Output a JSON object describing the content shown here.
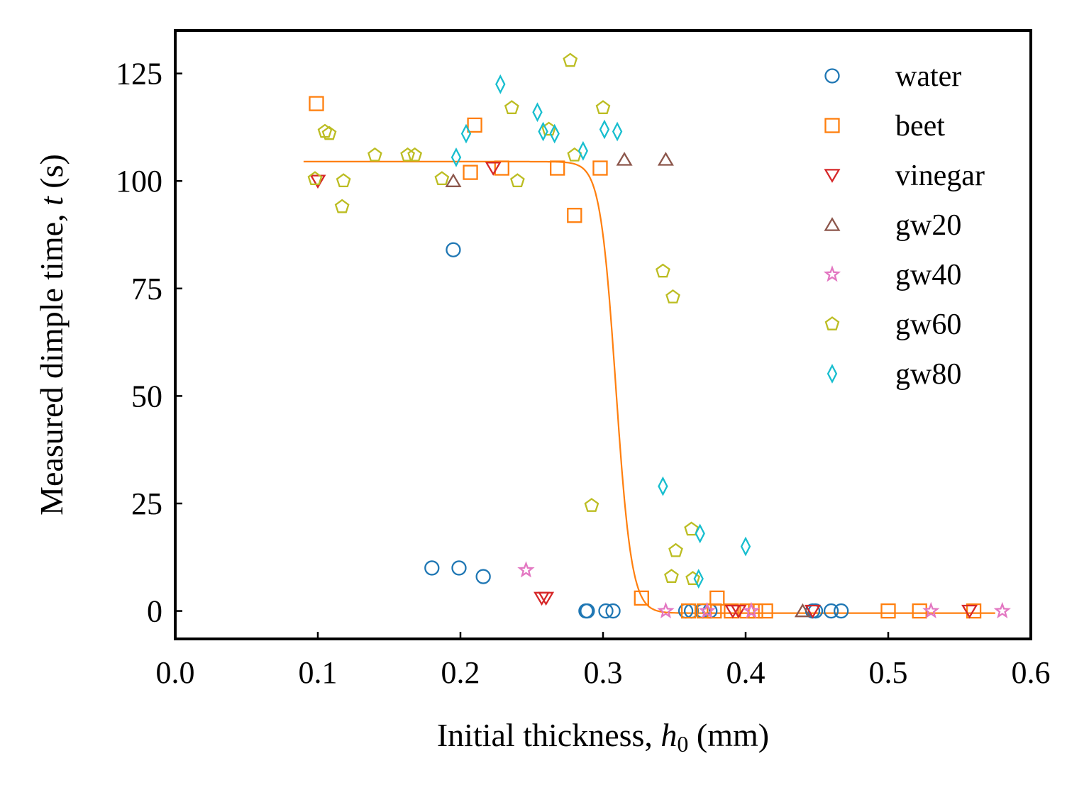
{
  "chart_data": {
    "type": "scatter",
    "xlabel_prefix": "Initial thickness, ",
    "xlabel_var": "h",
    "xlabel_sub": "0",
    "xlabel_suffix": " (mm)",
    "ylabel_prefix": "Measured dimple time, ",
    "ylabel_var": "t",
    "ylabel_suffix": " (s)",
    "xlim": [
      0.0,
      0.6
    ],
    "ylim": [
      -6.5,
      135
    ],
    "xticks": [
      "0.0",
      "0.1",
      "0.2",
      "0.3",
      "0.4",
      "0.5",
      "0.6"
    ],
    "yticks": [
      "0",
      "25",
      "50",
      "75",
      "100",
      "125"
    ],
    "grid": false,
    "legend_position": "top-right",
    "series": [
      {
        "name": "water",
        "marker": "circle",
        "color": "#1f77b4",
        "x": [
          0.195,
          0.18,
          0.199,
          0.216,
          0.288,
          0.289,
          0.302,
          0.307,
          0.358,
          0.362,
          0.37,
          0.375,
          0.447,
          0.449,
          0.46,
          0.467
        ],
        "y": [
          84,
          10,
          10,
          8,
          0,
          0,
          0,
          0,
          0,
          0,
          0,
          0,
          0,
          0,
          0,
          0
        ]
      },
      {
        "name": "beet",
        "marker": "square",
        "color": "#ff7f0e",
        "x": [
          0.099,
          0.21,
          0.207,
          0.229,
          0.268,
          0.298,
          0.28,
          0.327,
          0.36,
          0.371,
          0.378,
          0.38,
          0.39,
          0.401,
          0.407,
          0.414,
          0.5,
          0.522,
          0.56
        ],
        "y": [
          118,
          113,
          102,
          103,
          103,
          103,
          92,
          3,
          0,
          0,
          0,
          3,
          0,
          0,
          0,
          0,
          0,
          0,
          0
        ]
      },
      {
        "name": "vinegar",
        "marker": "triangle-down",
        "color": "#d62728",
        "x": [
          0.1,
          0.223,
          0.257,
          0.26,
          0.391,
          0.395,
          0.447,
          0.557
        ],
        "y": [
          100,
          103,
          3,
          3,
          0,
          0,
          0,
          0
        ]
      },
      {
        "name": "gw20",
        "marker": "triangle-up",
        "color": "#8c564b",
        "x": [
          0.195,
          0.315,
          0.344,
          0.44
        ],
        "y": [
          100,
          105,
          105,
          0
        ]
      },
      {
        "name": "gw40",
        "marker": "star",
        "color": "#e377c2",
        "x": [
          0.246,
          0.344,
          0.373,
          0.404,
          0.53,
          0.58
        ],
        "y": [
          9.5,
          0,
          0,
          0,
          0,
          0
        ]
      },
      {
        "name": "gw60",
        "marker": "pentagon",
        "color": "#bcbd22",
        "x": [
          0.098,
          0.105,
          0.108,
          0.118,
          0.117,
          0.14,
          0.163,
          0.168,
          0.187,
          0.236,
          0.24,
          0.262,
          0.277,
          0.28,
          0.3,
          0.292,
          0.342,
          0.349,
          0.362,
          0.351,
          0.348,
          0.363
        ],
        "y": [
          100.5,
          111.5,
          111,
          100,
          94,
          106,
          106,
          106,
          100.5,
          117,
          100,
          112,
          128,
          106,
          117,
          24.5,
          79,
          73,
          19,
          14,
          8,
          7.5
        ]
      },
      {
        "name": "gw80",
        "marker": "diamond",
        "color": "#17becf",
        "x": [
          0.197,
          0.204,
          0.228,
          0.254,
          0.258,
          0.266,
          0.286,
          0.301,
          0.31,
          0.342,
          0.368,
          0.367,
          0.4
        ],
        "y": [
          105.5,
          111,
          122.5,
          116,
          111.5,
          111,
          107,
          112,
          111.5,
          29,
          18,
          7.5,
          15
        ]
      }
    ],
    "fit_curve": {
      "color": "#ff7f0e",
      "x_start": 0.09,
      "x_end": 0.575,
      "upper": 104.5,
      "lower": -0.5,
      "center": 0.309,
      "width": 0.0055
    }
  }
}
